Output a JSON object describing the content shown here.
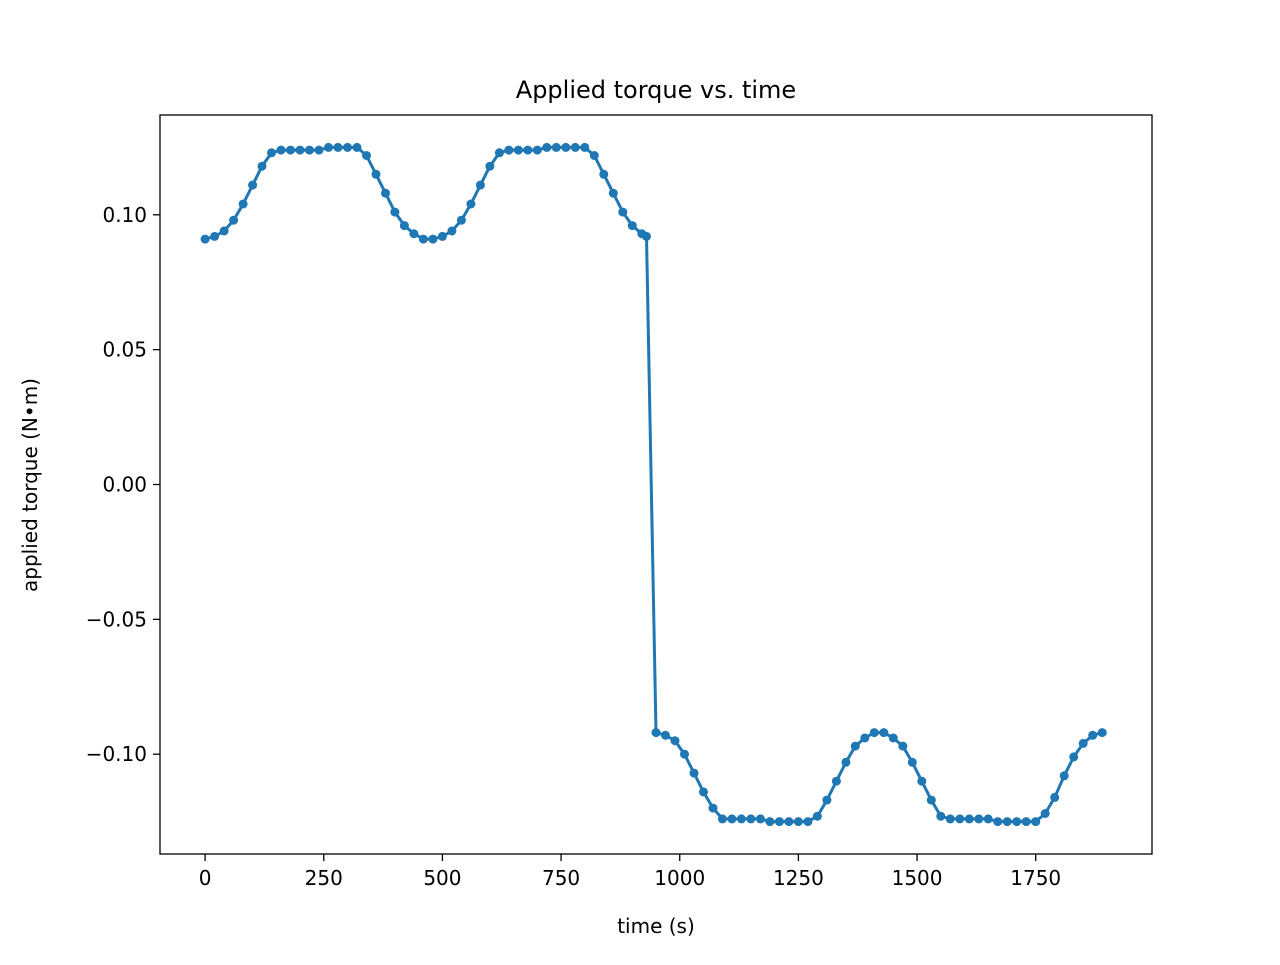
{
  "chart_data": {
    "type": "line",
    "title": "Applied torque vs. time",
    "xlabel": "time (s)",
    "ylabel": "applied torque (N•m)",
    "xlim": [
      -95,
      1995
    ],
    "ylim": [
      -0.137,
      0.137
    ],
    "xticks": [
      {
        "value": 0,
        "label": "0"
      },
      {
        "value": 250,
        "label": "250"
      },
      {
        "value": 500,
        "label": "500"
      },
      {
        "value": 750,
        "label": "750"
      },
      {
        "value": 1000,
        "label": "1000"
      },
      {
        "value": 1250,
        "label": "1250"
      },
      {
        "value": 1500,
        "label": "1500"
      },
      {
        "value": 1750,
        "label": "1750"
      }
    ],
    "yticks": [
      {
        "value": 0.1,
        "label": "0.10"
      },
      {
        "value": 0.05,
        "label": "0.05"
      },
      {
        "value": 0.0,
        "label": "0.00"
      },
      {
        "value": -0.05,
        "label": "−0.05"
      },
      {
        "value": -0.1,
        "label": "−0.10"
      }
    ],
    "grid": false,
    "legend": "none",
    "series": [
      {
        "color": "#1f77b4",
        "marker": "dot",
        "x": [
          0,
          20,
          40,
          60,
          80,
          100,
          120,
          140,
          160,
          180,
          200,
          220,
          240,
          260,
          280,
          300,
          320,
          340,
          360,
          380,
          400,
          420,
          440,
          460,
          480,
          500,
          520,
          540,
          560,
          580,
          600,
          620,
          640,
          660,
          680,
          700,
          720,
          740,
          760,
          780,
          800,
          820,
          840,
          860,
          880,
          900,
          920,
          930,
          950,
          970,
          990,
          1010,
          1030,
          1050,
          1070,
          1090,
          1110,
          1130,
          1150,
          1170,
          1190,
          1210,
          1230,
          1250,
          1270,
          1290,
          1310,
          1330,
          1350,
          1370,
          1390,
          1410,
          1430,
          1450,
          1470,
          1490,
          1510,
          1530,
          1550,
          1570,
          1590,
          1610,
          1630,
          1650,
          1670,
          1690,
          1710,
          1730,
          1750,
          1770,
          1790,
          1810,
          1830,
          1850,
          1870,
          1890
        ],
        "y": [
          0.091,
          0.092,
          0.094,
          0.098,
          0.104,
          0.111,
          0.118,
          0.123,
          0.124,
          0.124,
          0.124,
          0.124,
          0.124,
          0.125,
          0.125,
          0.125,
          0.125,
          0.122,
          0.115,
          0.108,
          0.101,
          0.096,
          0.093,
          0.091,
          0.091,
          0.092,
          0.094,
          0.098,
          0.104,
          0.111,
          0.118,
          0.123,
          0.124,
          0.124,
          0.124,
          0.124,
          0.125,
          0.125,
          0.125,
          0.125,
          0.125,
          0.122,
          0.115,
          0.108,
          0.101,
          0.096,
          0.093,
          0.092,
          -0.092,
          -0.093,
          -0.095,
          -0.1,
          -0.107,
          -0.114,
          -0.12,
          -0.124,
          -0.124,
          -0.124,
          -0.124,
          -0.124,
          -0.125,
          -0.125,
          -0.125,
          -0.125,
          -0.125,
          -0.123,
          -0.117,
          -0.11,
          -0.103,
          -0.097,
          -0.094,
          -0.092,
          -0.092,
          -0.094,
          -0.097,
          -0.103,
          -0.11,
          -0.117,
          -0.123,
          -0.124,
          -0.124,
          -0.124,
          -0.124,
          -0.124,
          -0.125,
          -0.125,
          -0.125,
          -0.125,
          -0.125,
          -0.122,
          -0.116,
          -0.108,
          -0.101,
          -0.096,
          -0.093,
          -0.092
        ]
      }
    ]
  }
}
